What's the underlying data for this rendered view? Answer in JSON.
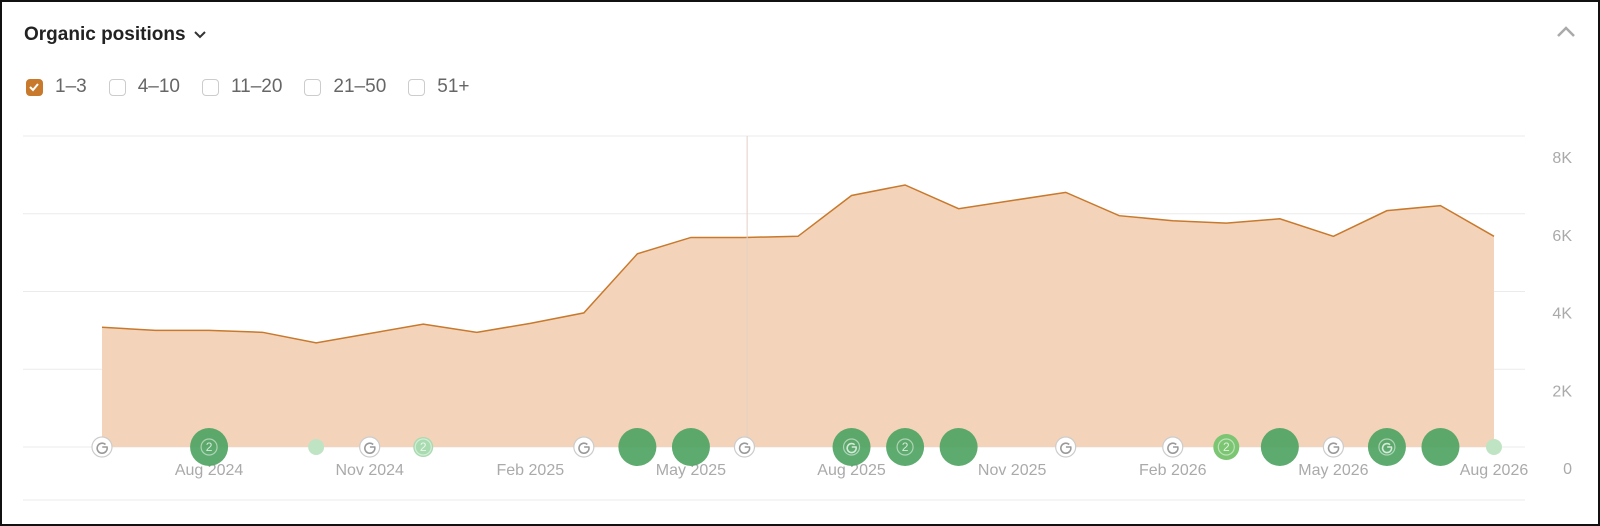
{
  "header": {
    "title": "Organic positions"
  },
  "filters": [
    {
      "label": "1–3",
      "checked": true
    },
    {
      "label": "4–10",
      "checked": false
    },
    {
      "label": "11–20",
      "checked": false
    },
    {
      "label": "21–50",
      "checked": false
    },
    {
      "label": "51+",
      "checked": false
    }
  ],
  "chart_data": {
    "type": "area",
    "categories": [
      null,
      null,
      "Aug 2024",
      null,
      null,
      "Nov 2024",
      null,
      null,
      "Feb 2025",
      null,
      null,
      "May 2025",
      null,
      null,
      "Aug 2025",
      null,
      null,
      "Nov 2025",
      null,
      null,
      "Feb 2026",
      null,
      null,
      "May 2026",
      null,
      null,
      "Aug 2026"
    ],
    "values": [
      3080,
      3000,
      3000,
      2950,
      2680,
      2920,
      3160,
      2950,
      3180,
      3450,
      4970,
      5390,
      5390,
      5420,
      6470,
      6740,
      6130,
      6340,
      6550,
      5950,
      5820,
      5760,
      5870,
      5420,
      6080,
      6210,
      5420
    ],
    "color": "#c8792c",
    "fill": "#f3d4ba",
    "ylim": [
      0,
      8000
    ],
    "yticks": [
      0,
      {
        "value": 2000,
        "label": "2K"
      },
      {
        "value": 4000,
        "label": "4K"
      },
      {
        "value": 6000,
        "label": "6K"
      },
      {
        "value": 8000,
        "label": "8K"
      }
    ],
    "grid": true,
    "annotations": [
      "2",
      "2",
      "2",
      "2"
    ]
  }
}
